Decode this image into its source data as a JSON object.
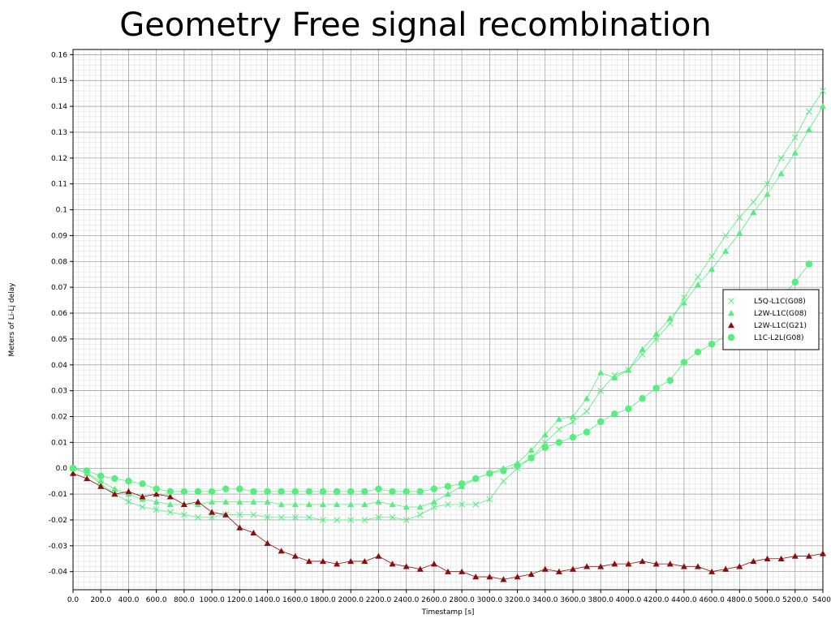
{
  "chart_data": {
    "type": "line",
    "title": "Geometry Free signal recombination",
    "xlabel": "Timestamp [s]",
    "ylabel": "Meters of Li-Lj delay",
    "xlim": [
      0,
      5400
    ],
    "ylim": [
      -0.047,
      0.162
    ],
    "grid": true,
    "legend_position": "right",
    "x_ticks": [
      "0.0",
      "200.0",
      "400.0",
      "600.0",
      "800.0",
      "1000.0",
      "1200.0",
      "1400.0",
      "1600.0",
      "1800.0",
      "2000.0",
      "2200.0",
      "2400.0",
      "2600.0",
      "2800.0",
      "3000.0",
      "3200.0",
      "3400.0",
      "3600.0",
      "3800.0",
      "4000.0",
      "4200.0",
      "4400.0",
      "4600.0",
      "4800.0",
      "5000.0",
      "5200.0",
      "5400."
    ],
    "y_ticks": [
      "-0.04",
      "-0.03",
      "-0.02",
      "-0.01",
      "0.0",
      "0.01",
      "0.02",
      "0.03",
      "0.04",
      "0.05",
      "0.06",
      "0.07",
      "0.08",
      "0.09",
      "0.1",
      "0.11",
      "0.12",
      "0.13",
      "0.14",
      "0.15",
      "0.16"
    ],
    "series": [
      {
        "name": "L5Q-L1C(G08)",
        "marker": "x",
        "color": "#55ee7f",
        "x": [
          0,
          100,
          200,
          300,
          400,
          500,
          600,
          700,
          800,
          900,
          1000,
          1100,
          1200,
          1300,
          1400,
          1500,
          1600,
          1700,
          1800,
          1900,
          2000,
          2100,
          2200,
          2300,
          2400,
          2500,
          2600,
          2700,
          2800,
          2900,
          3000,
          3100,
          3200,
          3300,
          3400,
          3500,
          3600,
          3700,
          3800,
          3900,
          4000,
          4100,
          4200,
          4300,
          4400,
          4500,
          4600,
          4700,
          4800,
          4900,
          5000,
          5100,
          5200,
          5300,
          5400
        ],
        "y": [
          0.0,
          -0.002,
          -0.006,
          -0.01,
          -0.013,
          -0.015,
          -0.016,
          -0.017,
          -0.018,
          -0.019,
          -0.019,
          -0.018,
          -0.018,
          -0.018,
          -0.019,
          -0.019,
          -0.019,
          -0.019,
          -0.02,
          -0.02,
          -0.02,
          -0.02,
          -0.019,
          -0.019,
          -0.02,
          -0.018,
          -0.015,
          -0.014,
          -0.014,
          -0.014,
          -0.012,
          -0.005,
          0.0,
          0.004,
          0.01,
          0.015,
          0.018,
          0.022,
          0.03,
          0.036,
          0.038,
          0.044,
          0.05,
          0.056,
          0.066,
          0.074,
          0.082,
          0.09,
          0.097,
          0.103,
          0.11,
          0.12,
          0.128,
          0.138,
          0.146
        ]
      },
      {
        "name": "L2W-L1C(G08)",
        "marker": "triangle",
        "color": "#55ee7f",
        "x": [
          0,
          100,
          200,
          300,
          400,
          500,
          600,
          700,
          800,
          900,
          1000,
          1100,
          1200,
          1300,
          1400,
          1500,
          1600,
          1700,
          1800,
          1900,
          2000,
          2100,
          2200,
          2300,
          2400,
          2500,
          2600,
          2700,
          2800,
          2900,
          3000,
          3100,
          3200,
          3300,
          3400,
          3500,
          3600,
          3700,
          3800,
          3900,
          4000,
          4100,
          4200,
          4300,
          4400,
          4500,
          4600,
          4700,
          4800,
          4900,
          5000,
          5100,
          5200,
          5300,
          5400
        ],
        "y": [
          0.0,
          -0.002,
          -0.005,
          -0.008,
          -0.01,
          -0.012,
          -0.013,
          -0.014,
          -0.014,
          -0.014,
          -0.013,
          -0.013,
          -0.013,
          -0.013,
          -0.013,
          -0.014,
          -0.014,
          -0.014,
          -0.014,
          -0.014,
          -0.014,
          -0.014,
          -0.013,
          -0.014,
          -0.015,
          -0.015,
          -0.013,
          -0.01,
          -0.007,
          -0.004,
          -0.002,
          0.0,
          0.002,
          0.007,
          0.013,
          0.019,
          0.02,
          0.027,
          0.037,
          0.035,
          0.038,
          0.046,
          0.052,
          0.058,
          0.064,
          0.071,
          0.077,
          0.084,
          0.091,
          0.099,
          0.106,
          0.114,
          0.122,
          0.131,
          0.14
        ]
      },
      {
        "name": "L2W-L1C(G21)",
        "marker": "triangle",
        "color": "#8b0e0e",
        "x": [
          0,
          100,
          200,
          300,
          400,
          500,
          600,
          700,
          800,
          900,
          1000,
          1100,
          1200,
          1300,
          1400,
          1500,
          1600,
          1700,
          1800,
          1900,
          2000,
          2100,
          2200,
          2300,
          2400,
          2500,
          2600,
          2700,
          2800,
          2900,
          3000,
          3100,
          3200,
          3300,
          3400,
          3500,
          3600,
          3700,
          3800,
          3900,
          4000,
          4100,
          4200,
          4300,
          4400,
          4500,
          4600,
          4700,
          4800,
          4900,
          5000,
          5100,
          5200,
          5300,
          5400
        ],
        "y": [
          -0.002,
          -0.004,
          -0.007,
          -0.01,
          -0.009,
          -0.011,
          -0.01,
          -0.011,
          -0.014,
          -0.013,
          -0.017,
          -0.018,
          -0.023,
          -0.025,
          -0.029,
          -0.032,
          -0.034,
          -0.036,
          -0.036,
          -0.037,
          -0.036,
          -0.036,
          -0.034,
          -0.037,
          -0.038,
          -0.039,
          -0.037,
          -0.04,
          -0.04,
          -0.042,
          -0.042,
          -0.043,
          -0.042,
          -0.041,
          -0.039,
          -0.04,
          -0.039,
          -0.038,
          -0.038,
          -0.037,
          -0.037,
          -0.036,
          -0.037,
          -0.037,
          -0.038,
          -0.038,
          -0.04,
          -0.039,
          -0.038,
          -0.036,
          -0.035,
          -0.035,
          -0.034,
          -0.034,
          -0.033
        ]
      },
      {
        "name": "L1C-L2L(G08)",
        "marker": "circle",
        "color": "#55ee7f",
        "x": [
          0,
          100,
          200,
          300,
          400,
          500,
          600,
          700,
          800,
          900,
          1000,
          1100,
          1200,
          1300,
          1400,
          1500,
          1600,
          1700,
          1800,
          1900,
          2000,
          2100,
          2200,
          2300,
          2400,
          2500,
          2600,
          2700,
          2800,
          2900,
          3000,
          3100,
          3200,
          3300,
          3400,
          3500,
          3600,
          3700,
          3800,
          3900,
          4000,
          4100,
          4200,
          4300,
          4400,
          4500,
          4600,
          4700,
          4800,
          4900,
          5000,
          5100,
          5200,
          5300
        ],
        "y": [
          0.0,
          -0.001,
          -0.003,
          -0.004,
          -0.005,
          -0.006,
          -0.008,
          -0.009,
          -0.009,
          -0.009,
          -0.009,
          -0.008,
          -0.008,
          -0.009,
          -0.009,
          -0.009,
          -0.009,
          -0.009,
          -0.009,
          -0.009,
          -0.009,
          -0.009,
          -0.008,
          -0.009,
          -0.009,
          -0.009,
          -0.008,
          -0.007,
          -0.006,
          -0.004,
          -0.002,
          -0.001,
          0.001,
          0.004,
          0.008,
          0.01,
          0.012,
          0.014,
          0.018,
          0.021,
          0.023,
          0.027,
          0.031,
          0.034,
          0.041,
          0.045,
          0.048,
          0.051,
          0.054,
          0.058,
          0.062,
          0.066,
          0.072,
          0.079
        ]
      }
    ]
  }
}
